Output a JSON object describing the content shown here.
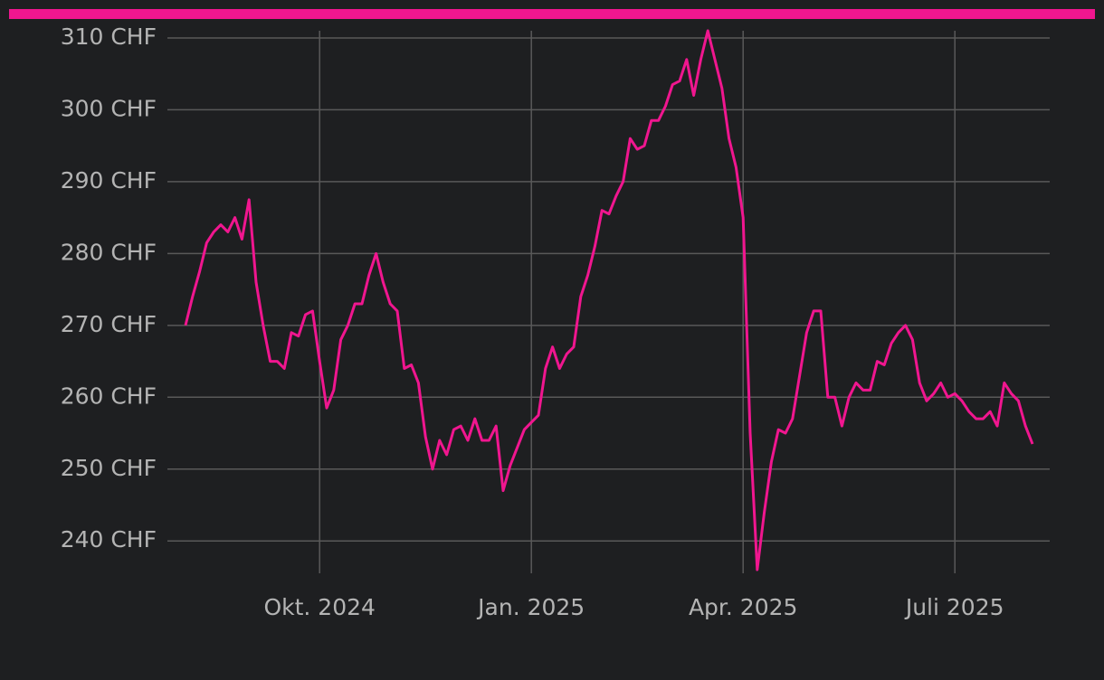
{
  "chart_data": {
    "type": "line",
    "categories": [
      null,
      null,
      null,
      null,
      null,
      null,
      null,
      null,
      null,
      null,
      null,
      null,
      null,
      null,
      null,
      null,
      null,
      null,
      null,
      "Okt. 2024",
      null,
      null,
      null,
      null,
      null,
      null,
      null,
      null,
      null,
      null,
      null,
      null,
      null,
      null,
      null,
      null,
      null,
      null,
      null,
      null,
      null,
      null,
      null,
      null,
      null,
      null,
      null,
      null,
      null,
      "Jan. 2025",
      null,
      null,
      null,
      null,
      null,
      null,
      null,
      null,
      null,
      null,
      null,
      null,
      null,
      null,
      null,
      null,
      null,
      null,
      null,
      null,
      null,
      null,
      null,
      null,
      null,
      null,
      null,
      null,
      null,
      "Apr. 2025",
      null,
      null,
      null,
      null,
      null,
      null,
      null,
      null,
      null,
      null,
      null,
      null,
      null,
      null,
      null,
      null,
      null,
      null,
      null,
      null,
      null,
      null,
      null,
      null,
      null,
      null,
      null,
      null,
      null,
      "Juli 2025",
      null,
      null,
      null,
      null,
      null,
      null,
      null,
      null,
      null,
      null,
      null
    ],
    "values": [
      270,
      274,
      277.5,
      281.5,
      283,
      284,
      283,
      285,
      282,
      287.5,
      276,
      270,
      265,
      265,
      264,
      269,
      268.5,
      271.5,
      272,
      265,
      258.5,
      261,
      268,
      270,
      273,
      273,
      277,
      280,
      276,
      273,
      272,
      264,
      264.5,
      262,
      254.5,
      250,
      254,
      252,
      255.5,
      256,
      254,
      257,
      254,
      254,
      256,
      247,
      250.5,
      253,
      255.5,
      256.5,
      257.5,
      264,
      267,
      264,
      266,
      267,
      274,
      277,
      281,
      286,
      285.5,
      288,
      290,
      296,
      294.5,
      295,
      298.5,
      298.5,
      300.5,
      303.5,
      304,
      307,
      302,
      307,
      311,
      307,
      303,
      296,
      292,
      285,
      255,
      236,
      244,
      251,
      255.5,
      255,
      257,
      263,
      269,
      272,
      272,
      260,
      260,
      256,
      260,
      262,
      261,
      261,
      265,
      264.5,
      267.5,
      269,
      270,
      268,
      262,
      259.5,
      260.5,
      262,
      260,
      260.5,
      259.5,
      258,
      257,
      257,
      258,
      256,
      262,
      260.5,
      259.5,
      256,
      253.5
    ],
    "color": "#f0168f",
    "ylim": [
      235.5,
      311
    ],
    "yticks": [
      {
        "value": 240,
        "label": "240 CHF"
      },
      {
        "value": 250,
        "label": "250 CHF"
      },
      {
        "value": 260,
        "label": "260 CHF"
      },
      {
        "value": 270,
        "label": "270 CHF"
      },
      {
        "value": 280,
        "label": "280 CHF"
      },
      {
        "value": 290,
        "label": "290 CHF"
      },
      {
        "value": 300,
        "label": "300 CHF"
      },
      {
        "value": 310,
        "label": "310 CHF"
      }
    ],
    "grid": true
  }
}
